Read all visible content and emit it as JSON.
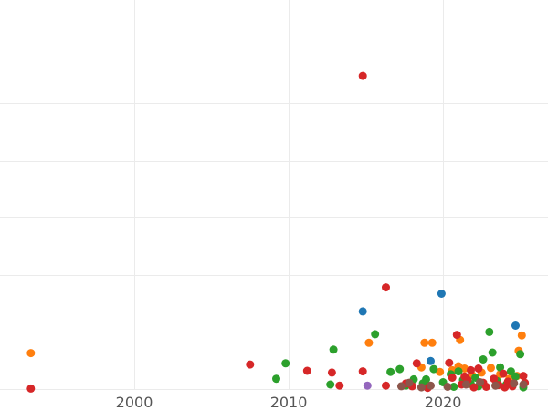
{
  "chart_data": {
    "type": "scatter",
    "title": "",
    "xlabel": "",
    "ylabel": "",
    "xlim": [
      1991.3,
      2026.8
    ],
    "ylim": [
      0,
      70
    ],
    "x_ticks": [
      {
        "value": 2000,
        "label": "2000"
      },
      {
        "value": 2010,
        "label": "2010"
      },
      {
        "value": 2020,
        "label": "2020"
      }
    ],
    "y_gridlines": [
      0,
      10,
      20,
      30,
      40,
      50,
      60,
      70
    ],
    "grid": true,
    "legend": "none",
    "series": [
      {
        "color": "#1f77b4",
        "points": [
          {
            "x": 2014.8,
            "y": 13.6
          },
          {
            "x": 2019.9,
            "y": 16.7
          },
          {
            "x": 2024.7,
            "y": 11.1
          },
          {
            "x": 2019.2,
            "y": 4.9
          }
        ]
      },
      {
        "color": "#ff7f0e",
        "points": [
          {
            "x": 1993.3,
            "y": 6.3
          },
          {
            "x": 2015.2,
            "y": 8.1
          },
          {
            "x": 2018.8,
            "y": 8.1
          },
          {
            "x": 2019.3,
            "y": 8.1
          },
          {
            "x": 2021.1,
            "y": 8.6
          },
          {
            "x": 2025.1,
            "y": 9.4
          },
          {
            "x": 2024.9,
            "y": 6.7
          },
          {
            "x": 2018.6,
            "y": 3.8
          },
          {
            "x": 2019.8,
            "y": 3.0
          },
          {
            "x": 2020.6,
            "y": 3.3
          },
          {
            "x": 2021.0,
            "y": 4.0
          },
          {
            "x": 2021.4,
            "y": 3.6
          },
          {
            "x": 2021.9,
            "y": 2.4
          },
          {
            "x": 2022.5,
            "y": 2.9
          },
          {
            "x": 2023.1,
            "y": 3.7
          },
          {
            "x": 2023.7,
            "y": 2.6
          },
          {
            "x": 2024.3,
            "y": 1.8
          },
          {
            "x": 2024.8,
            "y": 2.3
          }
        ]
      },
      {
        "color": "#2ca02c",
        "points": [
          {
            "x": 2009.2,
            "y": 1.8
          },
          {
            "x": 2009.8,
            "y": 4.5
          },
          {
            "x": 2012.7,
            "y": 0.8
          },
          {
            "x": 2012.9,
            "y": 6.9
          },
          {
            "x": 2015.6,
            "y": 9.6
          },
          {
            "x": 2016.6,
            "y": 3.0
          },
          {
            "x": 2017.2,
            "y": 3.5
          },
          {
            "x": 2017.6,
            "y": 0.6
          },
          {
            "x": 2018.1,
            "y": 1.7
          },
          {
            "x": 2018.7,
            "y": 1.0
          },
          {
            "x": 2018.9,
            "y": 1.7
          },
          {
            "x": 2019.4,
            "y": 3.5
          },
          {
            "x": 2020.0,
            "y": 1.2
          },
          {
            "x": 2020.5,
            "y": 2.6
          },
          {
            "x": 2020.7,
            "y": 0.4
          },
          {
            "x": 2021.0,
            "y": 3.1
          },
          {
            "x": 2021.3,
            "y": 1.6
          },
          {
            "x": 2021.8,
            "y": 0.9
          },
          {
            "x": 2022.1,
            "y": 2.0
          },
          {
            "x": 2022.3,
            "y": 0.5
          },
          {
            "x": 2022.6,
            "y": 5.2
          },
          {
            "x": 2023.0,
            "y": 10.0
          },
          {
            "x": 2023.2,
            "y": 6.4
          },
          {
            "x": 2023.5,
            "y": 1.4
          },
          {
            "x": 2023.7,
            "y": 3.8
          },
          {
            "x": 2024.1,
            "y": 0.8
          },
          {
            "x": 2024.4,
            "y": 3.1
          },
          {
            "x": 2024.7,
            "y": 2.2
          },
          {
            "x": 2025.0,
            "y": 6.1
          },
          {
            "x": 2025.2,
            "y": 0.3
          }
        ]
      },
      {
        "color": "#d62728",
        "points": [
          {
            "x": 1993.3,
            "y": 0.1
          },
          {
            "x": 2007.5,
            "y": 4.3
          },
          {
            "x": 2011.2,
            "y": 3.2
          },
          {
            "x": 2012.8,
            "y": 2.9
          },
          {
            "x": 2013.3,
            "y": 0.6
          },
          {
            "x": 2014.8,
            "y": 54.8
          },
          {
            "x": 2014.8,
            "y": 3.1
          },
          {
            "x": 2016.3,
            "y": 17.8
          },
          {
            "x": 2016.3,
            "y": 0.6
          },
          {
            "x": 2017.6,
            "y": 1.0
          },
          {
            "x": 2018.0,
            "y": 0.5
          },
          {
            "x": 2018.3,
            "y": 4.5
          },
          {
            "x": 2019.0,
            "y": 0.2
          },
          {
            "x": 2020.4,
            "y": 4.6
          },
          {
            "x": 2020.6,
            "y": 2.0
          },
          {
            "x": 2020.9,
            "y": 9.5
          },
          {
            "x": 2021.2,
            "y": 0.8
          },
          {
            "x": 2021.4,
            "y": 2.2
          },
          {
            "x": 2021.6,
            "y": 1.6
          },
          {
            "x": 2021.8,
            "y": 3.3
          },
          {
            "x": 2022.0,
            "y": 0.3
          },
          {
            "x": 2022.3,
            "y": 3.6
          },
          {
            "x": 2022.6,
            "y": 1.1
          },
          {
            "x": 2022.8,
            "y": 0.4
          },
          {
            "x": 2023.3,
            "y": 1.8
          },
          {
            "x": 2023.6,
            "y": 0.7
          },
          {
            "x": 2023.9,
            "y": 2.7
          },
          {
            "x": 2024.0,
            "y": 0.3
          },
          {
            "x": 2024.2,
            "y": 1.3
          },
          {
            "x": 2024.5,
            "y": 0.5
          },
          {
            "x": 2025.2,
            "y": 2.3
          },
          {
            "x": 2025.3,
            "y": 1.1
          }
        ]
      },
      {
        "color": "#9467bd",
        "points": [
          {
            "x": 2015.1,
            "y": 0.6
          }
        ]
      },
      {
        "color": "#8c564b",
        "points": [
          {
            "x": 2017.3,
            "y": 0.5
          },
          {
            "x": 2017.8,
            "y": 1.1
          },
          {
            "x": 2018.6,
            "y": 0.3
          },
          {
            "x": 2019.2,
            "y": 0.6
          },
          {
            "x": 2020.3,
            "y": 0.4
          },
          {
            "x": 2021.5,
            "y": 0.8
          },
          {
            "x": 2022.4,
            "y": 1.2
          },
          {
            "x": 2023.4,
            "y": 0.6
          },
          {
            "x": 2024.6,
            "y": 1.0
          },
          {
            "x": 2025.2,
            "y": 0.8
          }
        ]
      }
    ]
  }
}
